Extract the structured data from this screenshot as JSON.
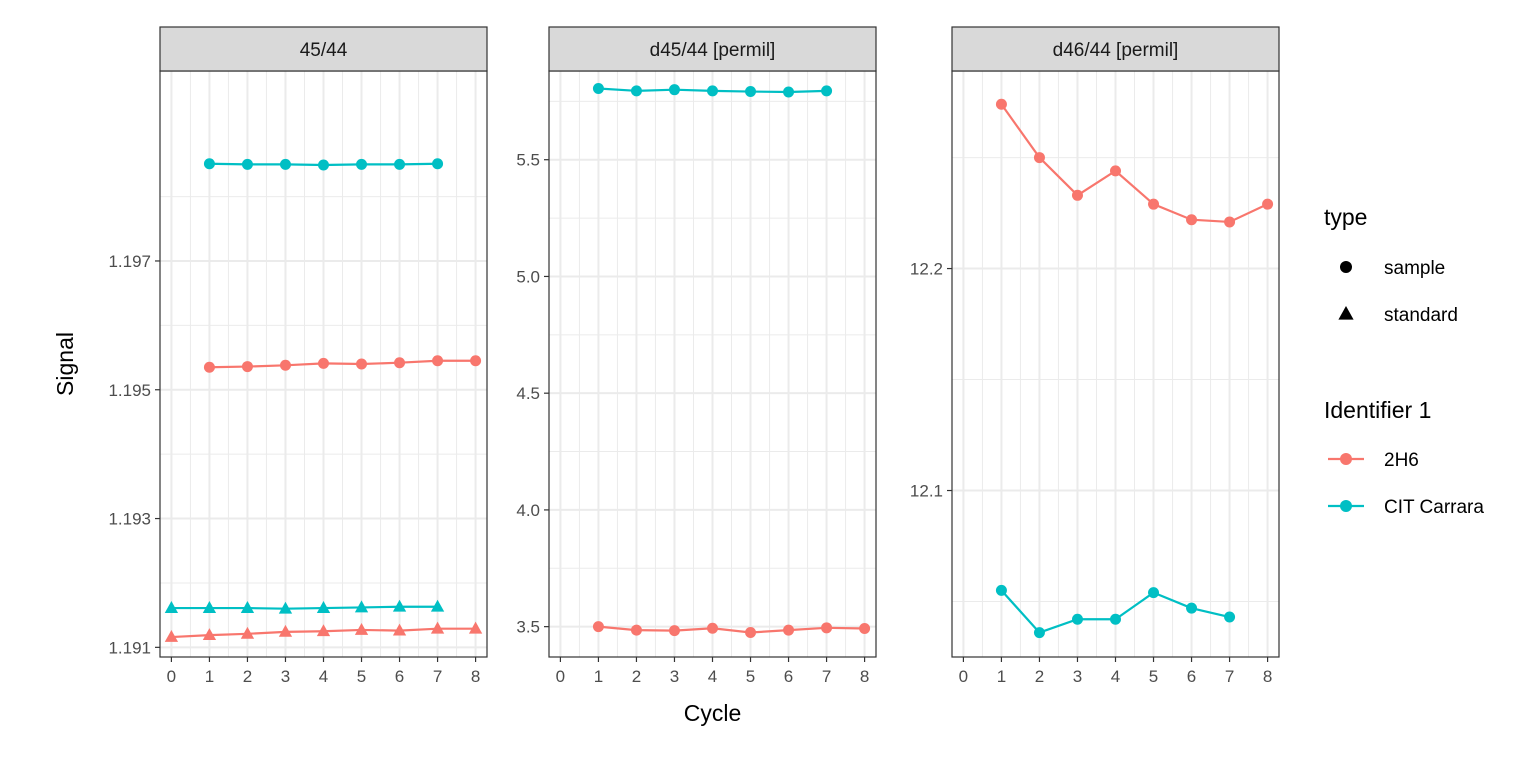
{
  "chart_data": {
    "type": "line",
    "xlabel": "Cycle",
    "ylabel": "Signal",
    "x_ticks": [
      0,
      1,
      2,
      3,
      4,
      5,
      6,
      7,
      8
    ],
    "xlim": [
      -0.3,
      8.3
    ],
    "grid": true,
    "legend_position": "right",
    "panels": [
      {
        "title": "45/44",
        "ylim": [
          1.19085,
          1.19995
        ],
        "y_ticks": [
          1.191,
          1.193,
          1.195,
          1.197
        ],
        "y_tick_labels": [
          "1.191",
          "1.193",
          "1.195",
          "1.197"
        ],
        "series": [
          {
            "identifier": "2H6",
            "type": "sample",
            "x": [
              1,
              2,
              3,
              4,
              5,
              6,
              7,
              8
            ],
            "y": [
              1.19535,
              1.19536,
              1.19538,
              1.19541,
              1.1954,
              1.19542,
              1.19545,
              1.19545
            ]
          },
          {
            "identifier": "CIT Carrara",
            "type": "sample",
            "x": [
              1,
              2,
              3,
              4,
              5,
              6,
              7
            ],
            "y": [
              1.19851,
              1.1985,
              1.1985,
              1.19849,
              1.1985,
              1.1985,
              1.19851
            ]
          },
          {
            "identifier": "2H6",
            "type": "standard",
            "x": [
              0,
              1,
              2,
              3,
              4,
              5,
              6,
              7,
              8
            ],
            "y": [
              1.19116,
              1.19119,
              1.19121,
              1.19124,
              1.19125,
              1.19127,
              1.19126,
              1.19129,
              1.19129
            ]
          },
          {
            "identifier": "CIT Carrara",
            "type": "standard",
            "x": [
              0,
              1,
              2,
              3,
              4,
              5,
              6,
              7
            ],
            "y": [
              1.19161,
              1.19161,
              1.19161,
              1.1916,
              1.19161,
              1.19162,
              1.19163,
              1.19163
            ]
          }
        ]
      },
      {
        "title": "d45/44 [permil]",
        "ylim": [
          3.37,
          5.88
        ],
        "y_ticks": [
          3.5,
          4.0,
          4.5,
          5.0,
          5.5
        ],
        "y_tick_labels": [
          "3.5",
          "4.0",
          "4.5",
          "5.0",
          "5.5"
        ],
        "series": [
          {
            "identifier": "2H6",
            "type": "sample",
            "x": [
              1,
              2,
              3,
              4,
              5,
              6,
              7,
              8
            ],
            "y": [
              3.5,
              3.485,
              3.483,
              3.493,
              3.475,
              3.485,
              3.495,
              3.492
            ]
          },
          {
            "identifier": "CIT Carrara",
            "type": "sample",
            "x": [
              1,
              2,
              3,
              4,
              5,
              6,
              7
            ],
            "y": [
              5.805,
              5.795,
              5.8,
              5.795,
              5.792,
              5.79,
              5.795
            ]
          }
        ]
      },
      {
        "title": "d46/44 [permil]",
        "ylim": [
          12.025,
          12.289
        ],
        "y_ticks": [
          12.1,
          12.2
        ],
        "y_tick_labels": [
          "12.1",
          "12.2"
        ],
        "series": [
          {
            "identifier": "2H6",
            "type": "sample",
            "x": [
              1,
              2,
              3,
              4,
              5,
              6,
              7,
              8
            ],
            "y": [
              12.274,
              12.25,
              12.233,
              12.244,
              12.229,
              12.222,
              12.221,
              12.229
            ]
          },
          {
            "identifier": "CIT Carrara",
            "type": "sample",
            "x": [
              1,
              2,
              3,
              4,
              5,
              6,
              7
            ],
            "y": [
              12.055,
              12.036,
              12.042,
              12.042,
              12.054,
              12.047,
              12.043
            ]
          }
        ]
      }
    ],
    "legends": [
      {
        "title": "type",
        "entries": [
          {
            "label": "sample",
            "shape": "circle"
          },
          {
            "label": "standard",
            "shape": "triangle"
          }
        ]
      },
      {
        "title": "Identifier 1",
        "entries": [
          {
            "label": "2H6",
            "color": "#F8766D"
          },
          {
            "label": "CIT Carrara",
            "color": "#00BFC4"
          }
        ]
      }
    ],
    "colors": {
      "2H6": "#F8766D",
      "CIT Carrara": "#00BFC4"
    }
  }
}
